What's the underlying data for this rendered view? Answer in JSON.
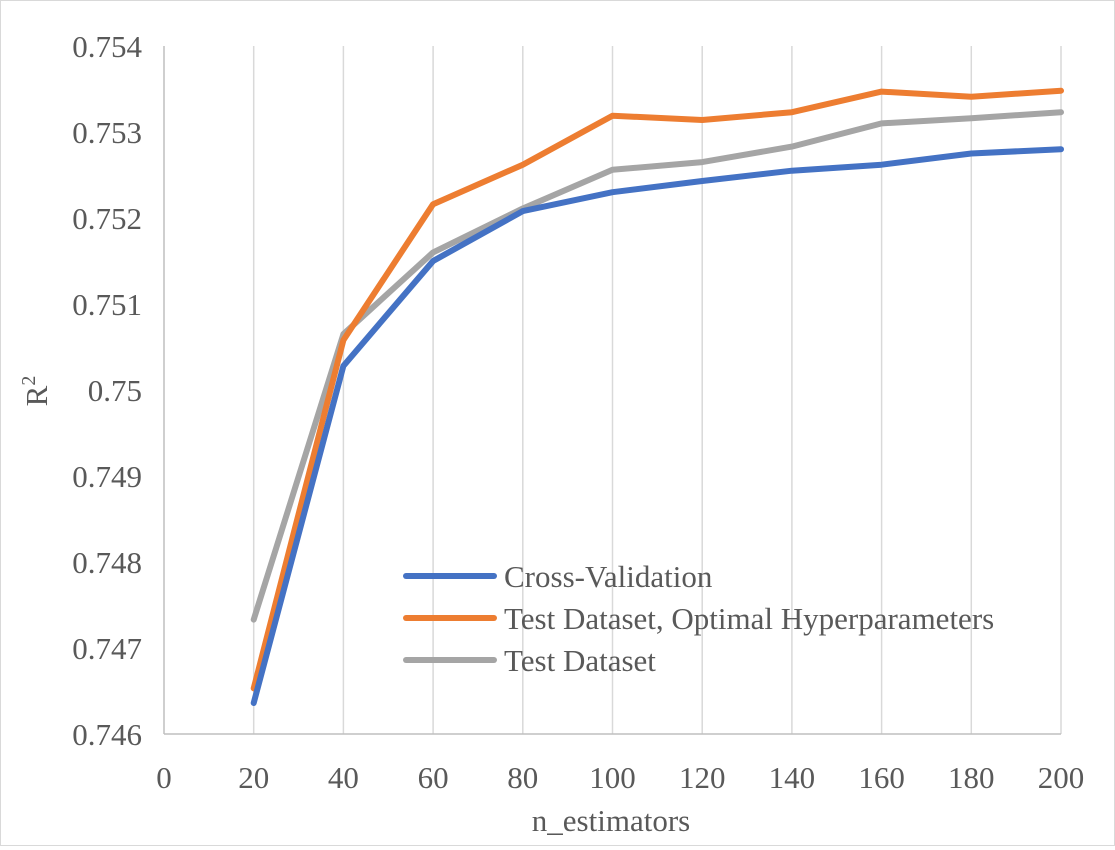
{
  "chart_data": {
    "type": "line",
    "x": [
      20,
      40,
      60,
      80,
      100,
      120,
      140,
      160,
      180,
      200
    ],
    "series": [
      {
        "name": "Cross-Validation",
        "color": "#4472c4",
        "values": [
          0.74636,
          0.75028,
          0.7515,
          0.75208,
          0.7523,
          0.75243,
          0.75255,
          0.75262,
          0.75275,
          0.7528
        ]
      },
      {
        "name": "Test Dataset, Optimal Hyperparameters",
        "color": "#ed7d31",
        "values": [
          0.74653,
          0.75058,
          0.75216,
          0.75262,
          0.75319,
          0.75314,
          0.75323,
          0.75347,
          0.75341,
          0.75348
        ]
      },
      {
        "name": "Test Dataset",
        "color": "#a5a5a5",
        "values": [
          0.74733,
          0.75065,
          0.7516,
          0.75211,
          0.75256,
          0.75265,
          0.75283,
          0.7531,
          0.75316,
          0.75323
        ]
      }
    ],
    "xlabel": "n_estimators",
    "ylabel": "R",
    "ylabel_superscript": "2",
    "xlim": [
      0,
      200
    ],
    "ylim": [
      0.746,
      0.754
    ],
    "x_ticks": [
      "0",
      "20",
      "40",
      "60",
      "80",
      "100",
      "120",
      "140",
      "160",
      "180",
      "200"
    ],
    "y_ticks": [
      "0.746",
      "0.747",
      "0.748",
      "0.749",
      "0.75",
      "0.751",
      "0.752",
      "0.753",
      "0.754"
    ],
    "grid": "vertical",
    "legend_position": "lower-right"
  }
}
